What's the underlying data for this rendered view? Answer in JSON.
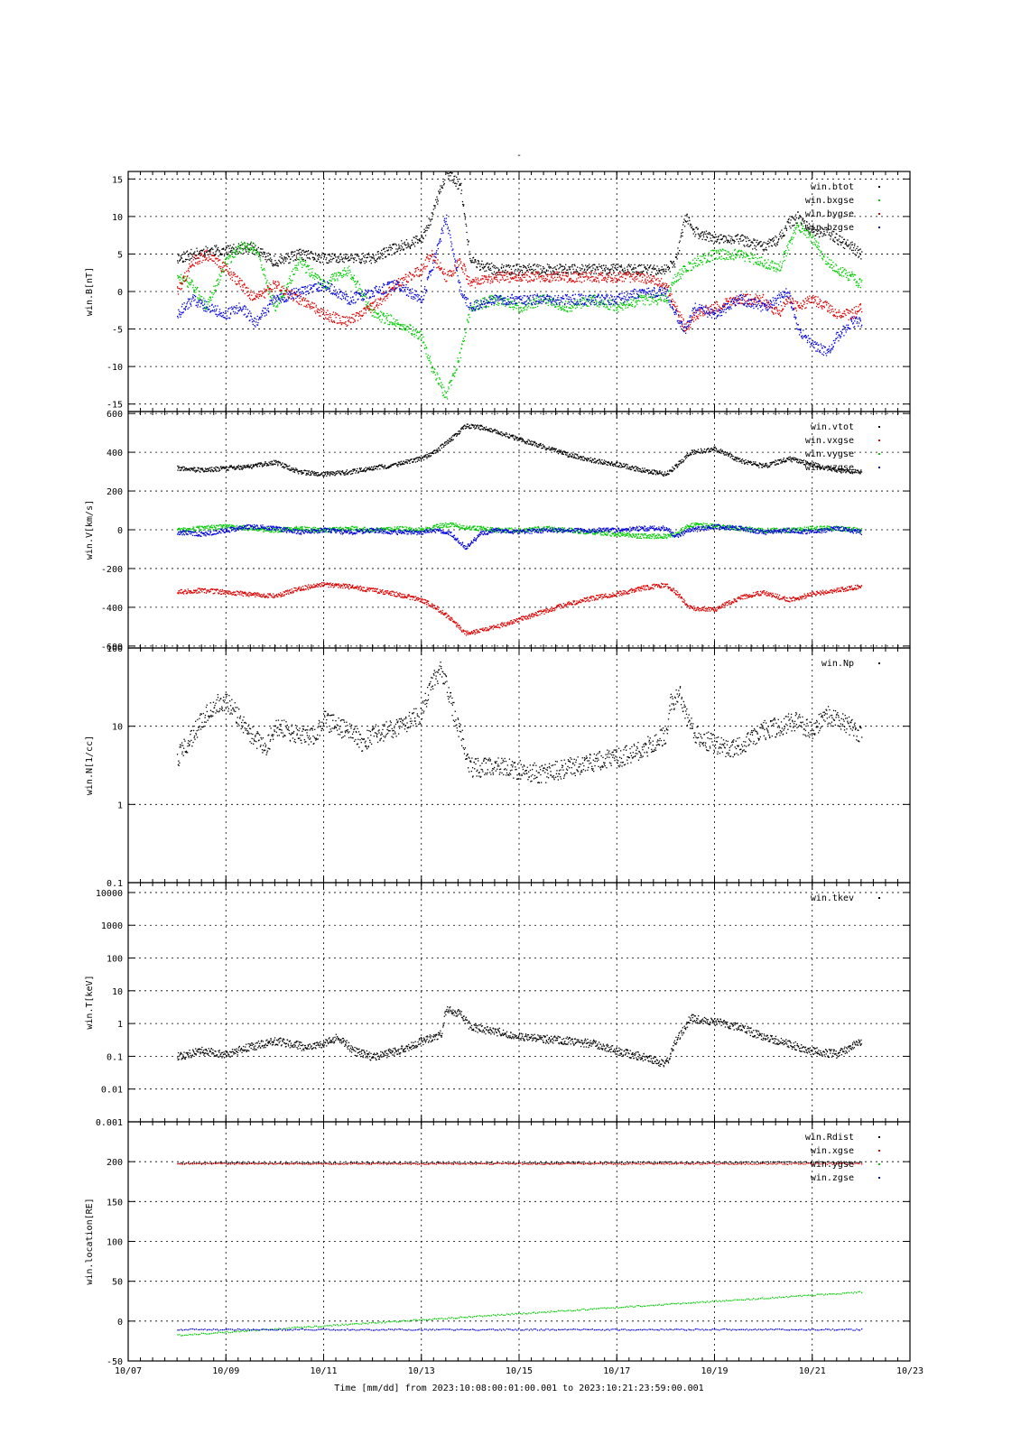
{
  "figure": {
    "title": "-",
    "xlabel": "Time [mm/dd]  from 2023:10:08:00:01:00.001  to  2023:10:21:23:59:00.001"
  },
  "colors": {
    "black": "#000000",
    "red": "#dd0000",
    "green": "#00cc00",
    "blue": "#0000dd"
  },
  "chart_data": [
    {
      "type": "scatter",
      "ylabel": "win.B[nT]",
      "ylim": [
        -16,
        16
      ],
      "yscale": "linear",
      "yticks": [
        -15,
        -10,
        -5,
        0,
        5,
        10,
        15
      ],
      "ytick_labels": [
        "-15",
        "-10",
        "-5",
        "0",
        "5",
        "10",
        "15"
      ],
      "grid": true,
      "legend_position": "top-right",
      "series": [
        {
          "name": "win.btot",
          "color": "#000000",
          "x": [
            8.0,
            8.3,
            8.6,
            9.0,
            9.5,
            10.0,
            10.5,
            11.0,
            11.5,
            12.0,
            12.5,
            13.0,
            13.2,
            13.5,
            13.8,
            14.0,
            14.5,
            15.0,
            15.5,
            16.0,
            16.5,
            17.0,
            17.5,
            18.0,
            18.2,
            18.4,
            18.6,
            19.0,
            19.5,
            20.0,
            20.3,
            20.5,
            20.7,
            21.0,
            21.3,
            21.5,
            21.8,
            22.0
          ],
          "y": [
            4.5,
            5,
            5.5,
            5.5,
            6,
            4,
            5,
            4.5,
            4.5,
            4.5,
            6,
            7,
            10,
            16,
            14,
            4,
            3,
            3,
            3,
            3,
            3,
            3,
            3,
            3,
            4,
            10,
            8,
            7,
            7,
            6,
            7,
            9,
            10,
            8,
            8,
            7,
            6,
            5
          ]
        },
        {
          "name": "win.bxgse",
          "color": "#00cc00",
          "x": [
            8.0,
            8.3,
            8.6,
            9.0,
            9.3,
            9.6,
            10.0,
            10.5,
            11.0,
            11.5,
            12.0,
            12.5,
            13.0,
            13.2,
            13.5,
            13.8,
            14.0,
            14.5,
            15.0,
            15.5,
            16.0,
            16.5,
            17.0,
            17.5,
            18.0,
            18.2,
            18.4,
            18.6,
            19.0,
            19.5,
            20.0,
            20.3,
            20.5,
            20.7,
            21.0,
            21.3,
            21.5,
            21.8,
            22.0
          ],
          "y": [
            2,
            1,
            -2,
            4,
            6,
            6,
            -2,
            4,
            1,
            3,
            -3,
            -4,
            -6,
            -10,
            -14,
            -8,
            -2,
            -1,
            -2,
            -1,
            -2,
            -1,
            -2,
            -1,
            -1,
            2,
            3,
            4,
            5,
            5,
            4,
            3,
            6,
            9,
            7,
            4,
            3,
            2,
            1
          ]
        },
        {
          "name": "win.bygse",
          "color": "#dd0000",
          "x": [
            8.0,
            8.3,
            8.6,
            9.0,
            9.3,
            9.6,
            10.0,
            10.5,
            11.0,
            11.5,
            12.0,
            12.5,
            13.0,
            13.2,
            13.5,
            13.8,
            14.0,
            14.5,
            15.0,
            15.5,
            16.0,
            16.5,
            17.0,
            17.5,
            18.0,
            18.2,
            18.4,
            18.6,
            19.0,
            19.5,
            20.0,
            20.3,
            20.5,
            20.7,
            21.0,
            21.3,
            21.5,
            21.8,
            22.0
          ],
          "y": [
            0,
            4,
            5,
            3,
            1,
            -1,
            1,
            -1,
            -3,
            -4,
            -2,
            1,
            3,
            5,
            2,
            4,
            1,
            2,
            2,
            2,
            2,
            2,
            2,
            2,
            1,
            -2,
            -5,
            -3,
            -2,
            -1,
            -1,
            -3,
            -1,
            -2,
            -1,
            -2,
            -3,
            -3,
            -2
          ]
        },
        {
          "name": "win.bzgse",
          "color": "#0000dd",
          "x": [
            8.0,
            8.3,
            8.6,
            9.0,
            9.3,
            9.6,
            10.0,
            10.5,
            11.0,
            11.5,
            12.0,
            12.5,
            13.0,
            13.2,
            13.5,
            13.8,
            14.0,
            14.5,
            15.0,
            15.5,
            16.0,
            16.5,
            17.0,
            17.5,
            18.0,
            18.2,
            18.4,
            18.6,
            19.0,
            19.5,
            20.0,
            20.3,
            20.5,
            20.7,
            21.0,
            21.3,
            21.5,
            21.8,
            22.0
          ],
          "y": [
            -3,
            -1,
            -2,
            -3,
            -2,
            -4,
            -1,
            0,
            1,
            -1,
            0,
            1,
            -1,
            3,
            10,
            0,
            -2,
            -1,
            -1,
            -1,
            -1,
            -1,
            -1,
            0,
            0,
            -3,
            -5,
            -2,
            -3,
            -1,
            -2,
            -1,
            0,
            -5,
            -7,
            -8,
            -6,
            -4,
            -4
          ]
        }
      ]
    },
    {
      "type": "scatter",
      "ylabel": "win.V[km/s]",
      "ylim": [
        -610,
        610
      ],
      "yscale": "linear",
      "yticks": [
        -600,
        -400,
        -200,
        0,
        200,
        400,
        600
      ],
      "ytick_labels": [
        "-600",
        "-400",
        "-200",
        "0",
        "200",
        "400",
        "600"
      ],
      "grid": true,
      "legend_position": "top-right",
      "series": [
        {
          "name": "win.vtot",
          "color": "#000000",
          "x": [
            8.0,
            8.5,
            9.0,
            9.5,
            10.0,
            10.5,
            11.0,
            11.5,
            12.0,
            12.5,
            13.0,
            13.3,
            13.6,
            13.9,
            14.2,
            14.5,
            15.0,
            15.5,
            16.0,
            16.5,
            17.0,
            17.5,
            18.0,
            18.2,
            18.5,
            19.0,
            19.5,
            20.0,
            20.5,
            21.0,
            21.5,
            22.0
          ],
          "y": [
            320,
            310,
            320,
            330,
            350,
            300,
            290,
            300,
            320,
            340,
            370,
            410,
            470,
            540,
            530,
            510,
            470,
            430,
            390,
            360,
            340,
            310,
            290,
            330,
            400,
            420,
            360,
            330,
            370,
            340,
            310,
            300
          ]
        },
        {
          "name": "win.vxgse",
          "color": "#dd0000",
          "x": [
            8.0,
            8.5,
            9.0,
            9.5,
            10.0,
            10.5,
            11.0,
            11.5,
            12.0,
            12.5,
            13.0,
            13.3,
            13.6,
            13.9,
            14.2,
            14.5,
            15.0,
            15.5,
            16.0,
            16.5,
            17.0,
            17.5,
            18.0,
            18.2,
            18.5,
            19.0,
            19.5,
            20.0,
            20.5,
            21.0,
            21.5,
            22.0
          ],
          "y": [
            -320,
            -310,
            -320,
            -330,
            -340,
            -300,
            -280,
            -290,
            -310,
            -330,
            -360,
            -400,
            -460,
            -530,
            -520,
            -500,
            -460,
            -420,
            -380,
            -350,
            -330,
            -300,
            -280,
            -320,
            -400,
            -410,
            -350,
            -320,
            -360,
            -330,
            -310,
            -290
          ]
        },
        {
          "name": "win.vygse",
          "color": "#00cc00",
          "x": [
            8.0,
            8.5,
            9.0,
            9.5,
            10.0,
            10.5,
            11.0,
            11.5,
            12.0,
            12.5,
            13.0,
            13.3,
            13.6,
            13.9,
            14.2,
            14.5,
            15.0,
            15.5,
            16.0,
            16.5,
            17.0,
            17.5,
            18.0,
            18.2,
            18.5,
            19.0,
            19.5,
            20.0,
            20.5,
            21.0,
            21.5,
            22.0
          ],
          "y": [
            0,
            10,
            20,
            10,
            0,
            10,
            0,
            10,
            0,
            10,
            0,
            20,
            30,
            10,
            10,
            0,
            0,
            10,
            0,
            -10,
            -20,
            -30,
            -30,
            -20,
            30,
            20,
            10,
            0,
            0,
            10,
            10,
            0
          ]
        },
        {
          "name": "win.vzgse",
          "color": "#0000dd",
          "x": [
            8.0,
            8.5,
            9.0,
            9.5,
            10.0,
            10.5,
            11.0,
            11.5,
            12.0,
            12.5,
            13.0,
            13.3,
            13.6,
            13.9,
            14.2,
            14.5,
            15.0,
            15.5,
            16.0,
            16.5,
            17.0,
            17.5,
            18.0,
            18.2,
            18.5,
            19.0,
            19.5,
            20.0,
            20.5,
            21.0,
            21.5,
            22.0
          ],
          "y": [
            -10,
            -20,
            0,
            20,
            10,
            -10,
            0,
            -10,
            0,
            -10,
            -10,
            0,
            -20,
            -90,
            -20,
            0,
            -10,
            0,
            0,
            0,
            0,
            10,
            10,
            -30,
            0,
            20,
            10,
            -10,
            0,
            -10,
            10,
            -10
          ]
        }
      ]
    },
    {
      "type": "scatter",
      "ylabel": "win.N[1/cc]",
      "ylim": [
        0.1,
        100
      ],
      "yscale": "log",
      "yticks": [
        0.1,
        1,
        10,
        100
      ],
      "ytick_labels": [
        "0.1",
        "1",
        "10",
        "100"
      ],
      "grid": true,
      "legend_position": "top-right",
      "series": [
        {
          "name": "win.Np",
          "color": "#000000",
          "x": [
            8.0,
            8.2,
            8.5,
            8.8,
            9.0,
            9.2,
            9.5,
            9.8,
            10.0,
            10.5,
            10.8,
            11.0,
            11.3,
            11.6,
            11.8,
            12.0,
            12.3,
            12.6,
            13.0,
            13.2,
            13.4,
            13.6,
            13.8,
            14.0,
            14.3,
            14.6,
            15.0,
            15.5,
            16.0,
            16.5,
            17.0,
            17.5,
            18.0,
            18.1,
            18.3,
            18.5,
            18.7,
            19.0,
            19.3,
            19.6,
            20.0,
            20.3,
            20.6,
            21.0,
            21.3,
            21.6,
            22.0
          ],
          "y": [
            4,
            6,
            12,
            20,
            22,
            15,
            8,
            5,
            10,
            8,
            7,
            12,
            10,
            8,
            6,
            8,
            9,
            10,
            15,
            35,
            55,
            20,
            8,
            3,
            3,
            3,
            2.8,
            2.5,
            3,
            3.5,
            4,
            5,
            8,
            20,
            25,
            10,
            7,
            6,
            5,
            6,
            9,
            10,
            12,
            9,
            14,
            12,
            8
          ]
        }
      ]
    },
    {
      "type": "scatter",
      "ylabel": "win.T[keV]",
      "ylim": [
        0.001,
        20000
      ],
      "yscale": "log",
      "yticks": [
        0.001,
        0.01,
        0.1,
        1,
        10,
        100,
        1000,
        10000
      ],
      "ytick_labels": [
        "0.001",
        "0.01",
        "0.1",
        "1",
        "10",
        "100",
        "1000",
        "10000"
      ],
      "grid": true,
      "legend_position": "top-right",
      "series": [
        {
          "name": "win.tkev",
          "color": "#000000",
          "x": [
            8.0,
            8.5,
            9.0,
            9.5,
            10.0,
            10.3,
            10.6,
            11.0,
            11.3,
            11.6,
            12.0,
            12.5,
            13.0,
            13.4,
            13.5,
            13.8,
            14.0,
            14.5,
            15.0,
            15.5,
            16.0,
            16.5,
            17.0,
            17.5,
            18.0,
            18.2,
            18.5,
            19.0,
            19.5,
            20.0,
            20.5,
            21.0,
            21.5,
            22.0
          ],
          "y": [
            0.1,
            0.15,
            0.12,
            0.2,
            0.3,
            0.25,
            0.2,
            0.25,
            0.4,
            0.15,
            0.1,
            0.15,
            0.3,
            0.5,
            3,
            2,
            0.8,
            0.6,
            0.4,
            0.35,
            0.3,
            0.25,
            0.15,
            0.1,
            0.06,
            0.3,
            1.5,
            1.2,
            0.8,
            0.4,
            0.25,
            0.15,
            0.12,
            0.3
          ]
        }
      ]
    },
    {
      "type": "scatter",
      "ylabel": "win.location[RE]",
      "ylim": [
        -50,
        250
      ],
      "yscale": "linear",
      "yticks": [
        -50,
        0,
        50,
        100,
        150,
        200
      ],
      "ytick_labels": [
        "-50",
        "0",
        "50",
        "100",
        "150",
        "200"
      ],
      "grid": true,
      "legend_position": "top-right",
      "series": [
        {
          "name": "win.Rdist",
          "color": "#000000",
          "x": [
            8.0,
            15.0,
            22.0
          ],
          "y": [
            199,
            199,
            200
          ]
        },
        {
          "name": "win.xgse",
          "color": "#dd0000",
          "x": [
            8.0,
            15.0,
            22.0
          ],
          "y": [
            198,
            198,
            198
          ]
        },
        {
          "name": "win.ygse",
          "color": "#00cc00",
          "x": [
            8.0,
            22.0
          ],
          "y": [
            -17,
            37
          ]
        },
        {
          "name": "win.zgse",
          "color": "#0000dd",
          "x": [
            8.0,
            15.0,
            22.0
          ],
          "y": [
            -10,
            -10,
            -10
          ]
        }
      ]
    }
  ],
  "x_axis": {
    "range_days": [
      7,
      23
    ],
    "tick_days": [
      7,
      9,
      11,
      13,
      15,
      17,
      19,
      21,
      23
    ],
    "tick_labels": [
      "10/07",
      "10/09",
      "10/11",
      "10/13",
      "10/15",
      "10/17",
      "10/19",
      "10/21",
      "10/23"
    ]
  }
}
